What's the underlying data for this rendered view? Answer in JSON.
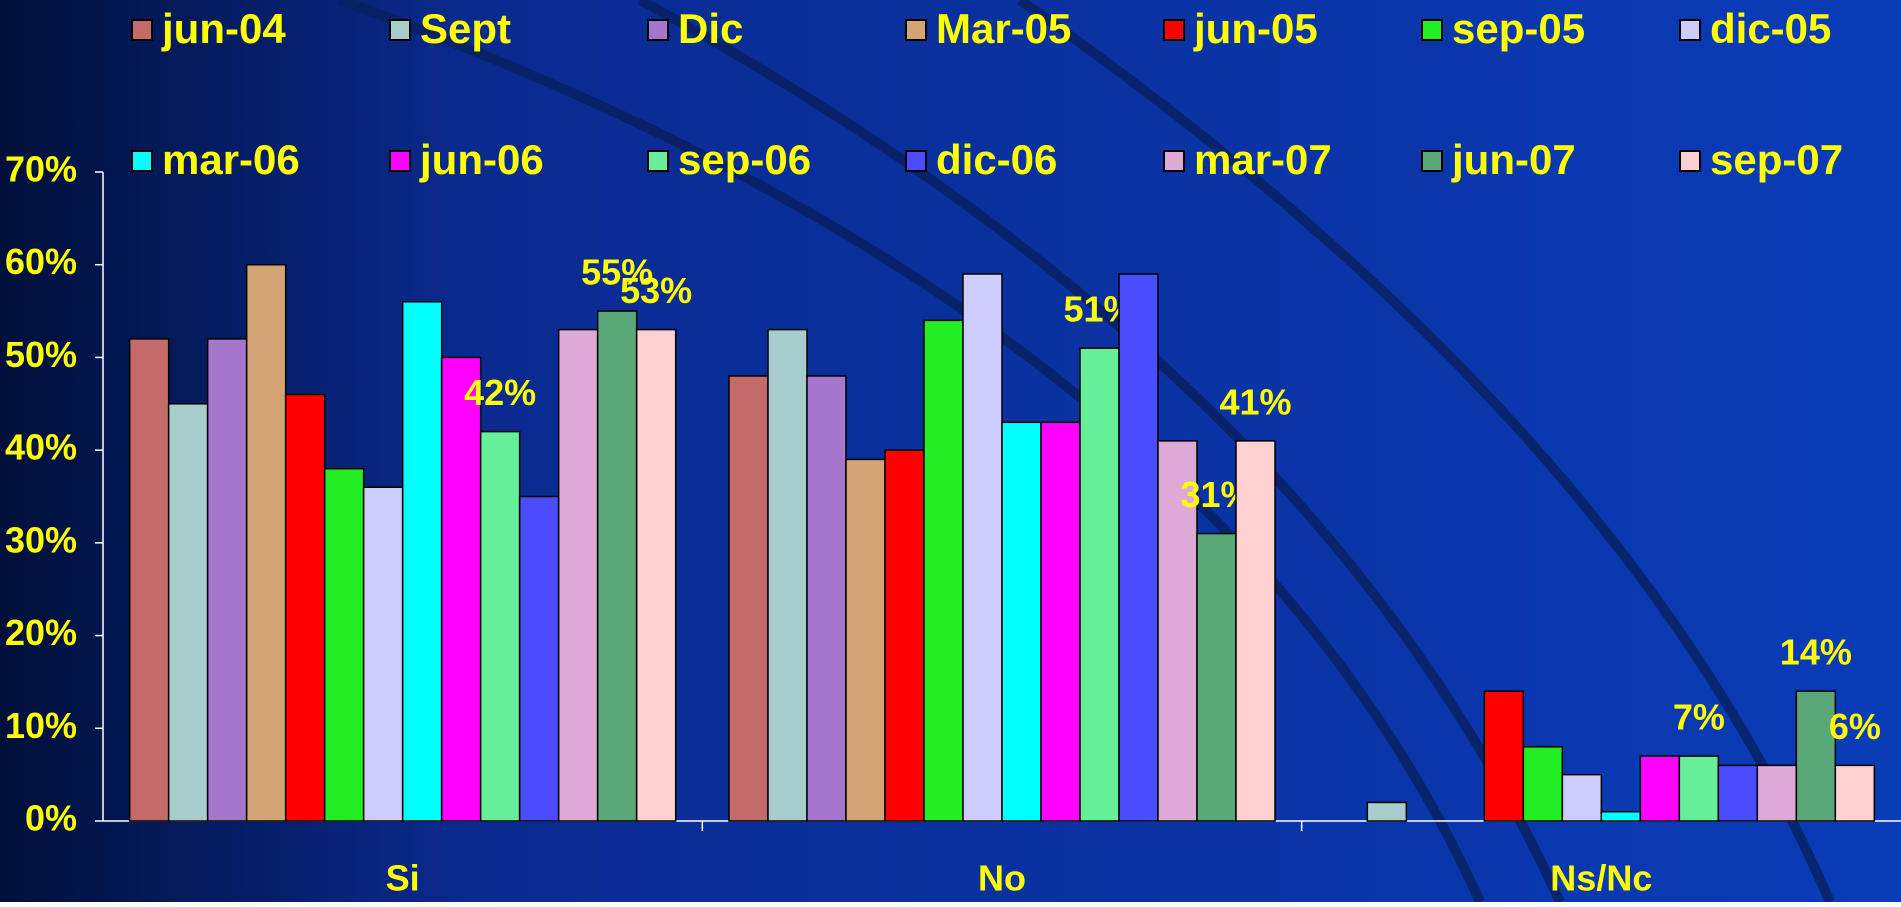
{
  "chart_data": {
    "type": "bar",
    "categories": [
      "Si",
      "No",
      "Ns/Nc"
    ],
    "series": [
      {
        "name": "jun-04",
        "color": "#c46a6a",
        "values": [
          52,
          48,
          null
        ]
      },
      {
        "name": "Sept",
        "color": "#a6cccc",
        "values": [
          45,
          53,
          2
        ]
      },
      {
        "name": "Dic",
        "color": "#a676cc",
        "values": [
          52,
          48,
          null
        ]
      },
      {
        "name": "Mar-05",
        "color": "#d4a474",
        "values": [
          60,
          39,
          null
        ]
      },
      {
        "name": "jun-05",
        "color": "#ff0000",
        "values": [
          46,
          40,
          14
        ]
      },
      {
        "name": "sep-05",
        "color": "#22ee22",
        "values": [
          38,
          54,
          8
        ]
      },
      {
        "name": "dic-05",
        "color": "#ccccff",
        "values": [
          36,
          59,
          5
        ]
      },
      {
        "name": "mar-06",
        "color": "#00ffff",
        "values": [
          56,
          43,
          1
        ]
      },
      {
        "name": "jun-06",
        "color": "#ff00ff",
        "values": [
          50,
          43,
          7
        ]
      },
      {
        "name": "sep-06",
        "color": "#66ee99",
        "values": [
          42,
          51,
          7
        ],
        "value_labels": [
          "42%",
          "51%",
          "7%"
        ]
      },
      {
        "name": "dic-06",
        "color": "#4c4cff",
        "values": [
          35,
          59,
          6
        ]
      },
      {
        "name": "mar-07",
        "color": "#dcaad4",
        "values": [
          53,
          41,
          6
        ]
      },
      {
        "name": "jun-07",
        "color": "#5aa878",
        "values": [
          55,
          31,
          14
        ],
        "value_labels": [
          "55%",
          "31%",
          "14%"
        ]
      },
      {
        "name": "sep-07",
        "color": "#ffd0d0",
        "values": [
          53,
          41,
          6
        ],
        "value_labels": [
          "53%",
          "41%",
          "6%"
        ]
      }
    ],
    "ylim": [
      0,
      70
    ],
    "yticks": [
      {
        "value": 0,
        "label": "0%"
      },
      {
        "value": 10,
        "label": "10%"
      },
      {
        "value": 20,
        "label": "20%"
      },
      {
        "value": 30,
        "label": "30%"
      },
      {
        "value": 40,
        "label": "40%"
      },
      {
        "value": 50,
        "label": "50%"
      },
      {
        "value": 60,
        "label": "60%"
      },
      {
        "value": 70,
        "label": "70%"
      }
    ],
    "grid": false,
    "legend": "top"
  }
}
